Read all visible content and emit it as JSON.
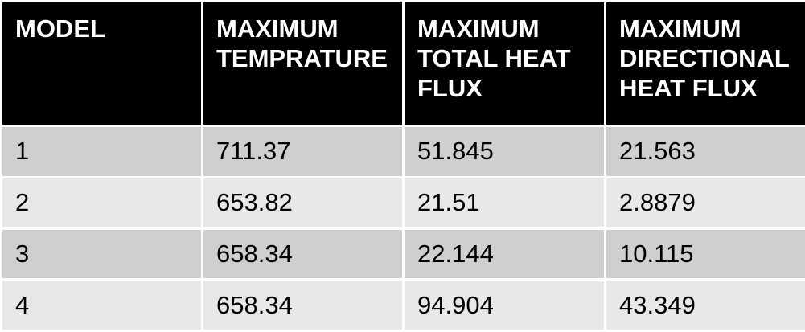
{
  "table": {
    "headers": [
      {
        "lines": [
          "MODEL"
        ]
      },
      {
        "lines": [
          "MAXIMUM",
          "TEMPRATURE"
        ]
      },
      {
        "lines": [
          "MAXIMUM",
          "TOTAL HEAT",
          "FLUX"
        ]
      },
      {
        "lines": [
          "MAXIMUM",
          "DIRECTIONAL",
          "HEAT FLUX"
        ]
      }
    ],
    "rows": [
      [
        "1",
        "711.37",
        "51.845",
        "21.563"
      ],
      [
        "2",
        "653.82",
        "21.51",
        "2.8879"
      ],
      [
        "3",
        "658.34",
        "22.144",
        "10.115"
      ],
      [
        "4",
        "658.34",
        "94.904",
        "43.349"
      ]
    ]
  },
  "colors": {
    "header_bg": "#000000",
    "header_text": "#ffffff",
    "row_odd_bg": "#cfcfcf",
    "row_even_bg": "#e8e8e8"
  }
}
